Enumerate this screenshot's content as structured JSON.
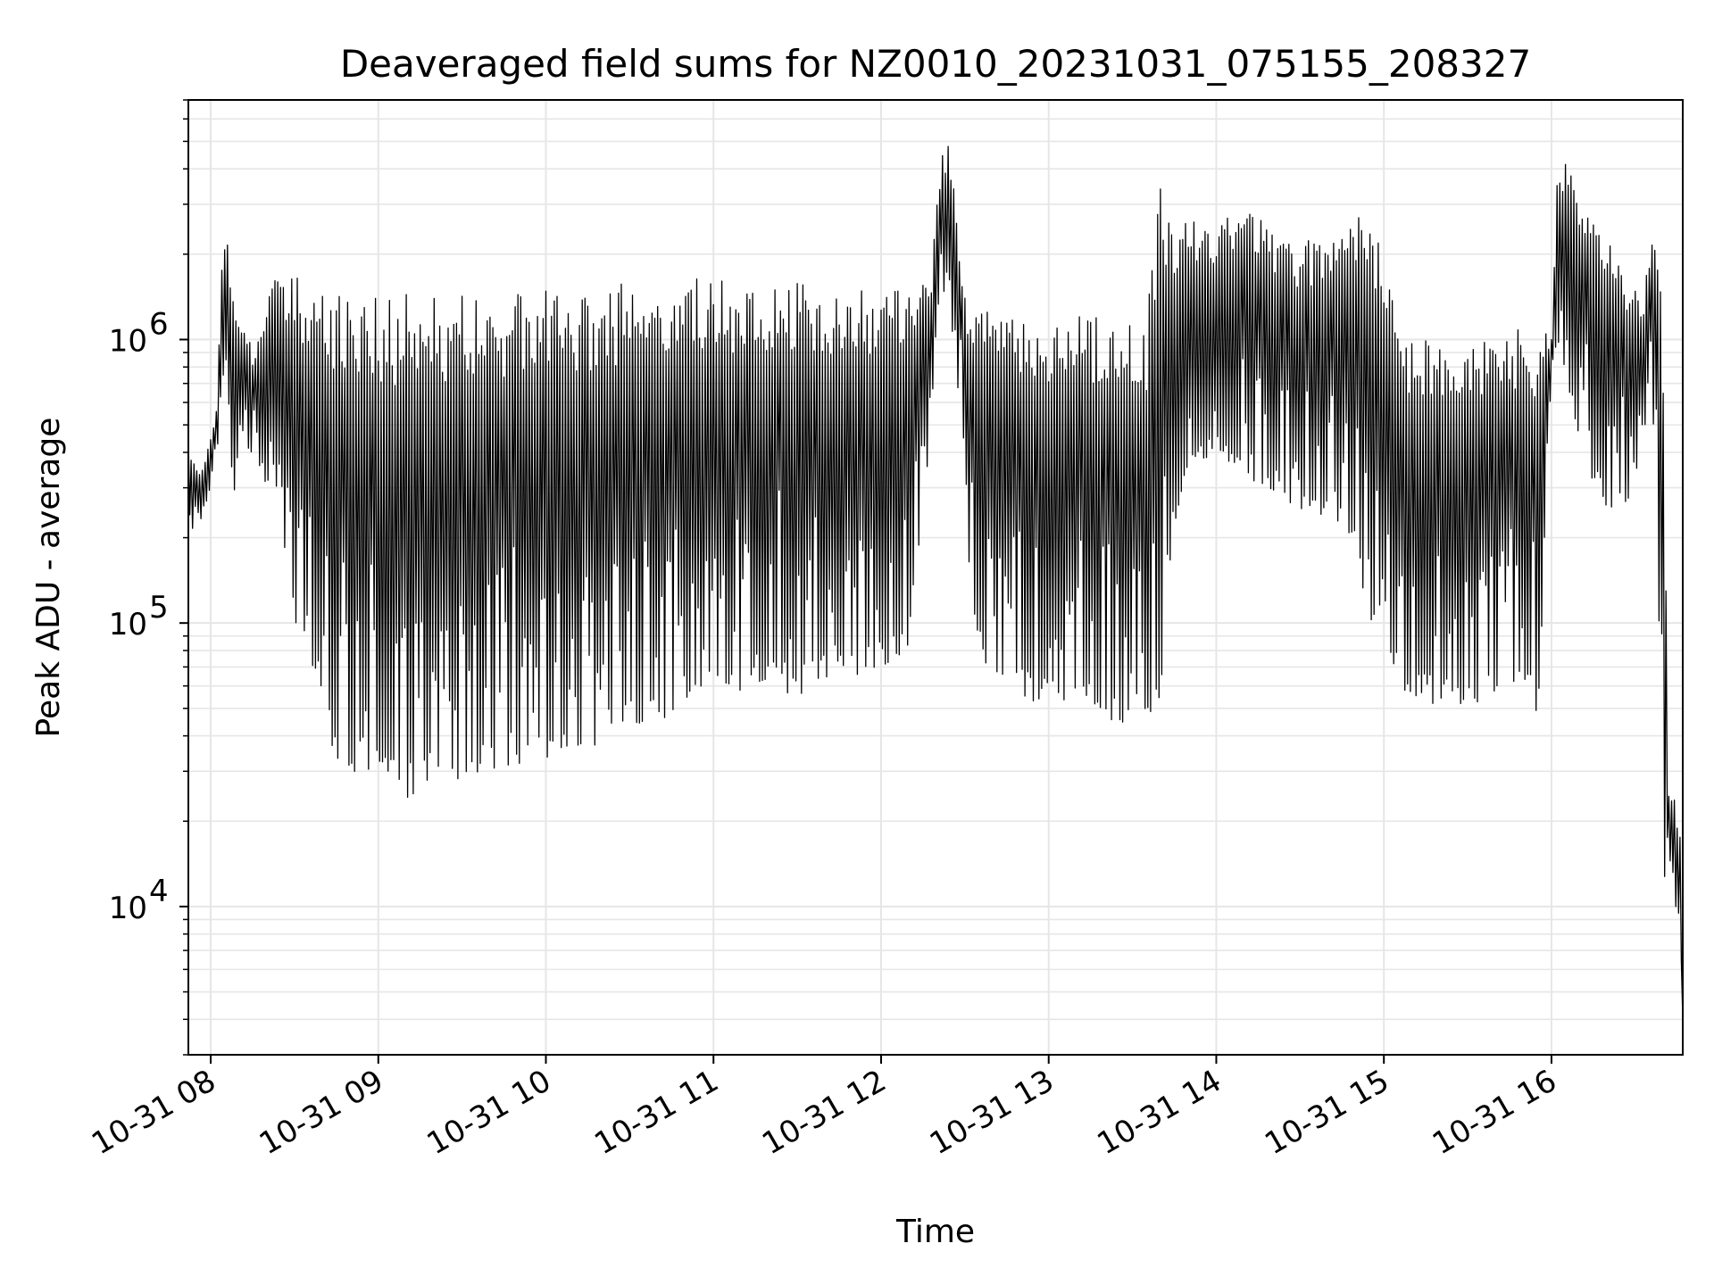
{
  "chart_data": {
    "type": "line",
    "title": "Deaveraged field sums for NZ0010_20231031_075155_208327",
    "xlabel": "Time",
    "ylabel": "Peak ADU - average",
    "xlim": [
      "2023-10-31 07:52",
      "2023-10-31 16:47"
    ],
    "ylim": [
      3000,
      7000000
    ],
    "yscale": "log",
    "grid": true,
    "legend": "none",
    "colors": {
      "line": "#000000",
      "grid": "#e6e6e6",
      "axis": "#000000",
      "background": "#ffffff"
    },
    "x_ticks": [
      {
        "value": "2023-10-31 08:00",
        "label": "10-31 08"
      },
      {
        "value": "2023-10-31 09:00",
        "label": "10-31 09"
      },
      {
        "value": "2023-10-31 10:00",
        "label": "10-31 10"
      },
      {
        "value": "2023-10-31 11:00",
        "label": "10-31 11"
      },
      {
        "value": "2023-10-31 12:00",
        "label": "10-31 12"
      },
      {
        "value": "2023-10-31 13:00",
        "label": "10-31 13"
      },
      {
        "value": "2023-10-31 14:00",
        "label": "10-31 14"
      },
      {
        "value": "2023-10-31 15:00",
        "label": "10-31 15"
      },
      {
        "value": "2023-10-31 16:00",
        "label": "10-31 16"
      }
    ],
    "y_ticks": [
      {
        "value": 10000,
        "base": "10",
        "exp": "4"
      },
      {
        "value": 100000,
        "base": "10",
        "exp": "5"
      },
      {
        "value": 1000000,
        "base": "10",
        "exp": "6"
      }
    ],
    "series": [
      {
        "x": [
          "2023-10-31 07:52",
          "2023-10-31 07:55",
          "2023-10-31 07:58",
          "2023-10-31 08:00",
          "2023-10-31 08:02",
          "2023-10-31 08:04",
          "2023-10-31 08:06",
          "2023-10-31 08:08",
          "2023-10-31 08:10",
          "2023-10-31 08:12",
          "2023-10-31 08:14",
          "2023-10-31 08:16",
          "2023-10-31 08:18",
          "2023-10-31 08:20",
          "2023-10-31 08:22",
          "2023-10-31 08:24",
          "2023-10-31 08:26",
          "2023-10-31 08:28",
          "2023-10-31 08:30",
          "2023-10-31 08:33",
          "2023-10-31 08:36",
          "2023-10-31 08:39",
          "2023-10-31 08:42",
          "2023-10-31 08:45",
          "2023-10-31 08:50",
          "2023-10-31 08:55",
          "2023-10-31 09:00",
          "2023-10-31 09:05",
          "2023-10-31 09:10",
          "2023-10-31 09:15",
          "2023-10-31 09:20",
          "2023-10-31 09:25",
          "2023-10-31 09:30",
          "2023-10-31 09:35",
          "2023-10-31 09:40",
          "2023-10-31 09:45",
          "2023-10-31 09:50",
          "2023-10-31 09:55",
          "2023-10-31 10:00",
          "2023-10-31 10:05",
          "2023-10-31 10:10",
          "2023-10-31 10:15",
          "2023-10-31 10:20",
          "2023-10-31 10:25",
          "2023-10-31 10:30",
          "2023-10-31 10:40",
          "2023-10-31 10:50",
          "2023-10-31 11:00",
          "2023-10-31 11:10",
          "2023-10-31 11:20",
          "2023-10-31 11:30",
          "2023-10-31 11:40",
          "2023-10-31 11:50",
          "2023-10-31 12:00",
          "2023-10-31 12:10",
          "2023-10-31 12:18",
          "2023-10-31 12:20",
          "2023-10-31 12:22",
          "2023-10-31 12:24",
          "2023-10-31 12:26",
          "2023-10-31 12:28",
          "2023-10-31 12:30",
          "2023-10-31 12:32",
          "2023-10-31 12:40",
          "2023-10-31 12:50",
          "2023-10-31 13:00",
          "2023-10-31 13:10",
          "2023-10-31 13:20",
          "2023-10-31 13:30",
          "2023-10-31 13:35",
          "2023-10-31 13:40",
          "2023-10-31 13:45",
          "2023-10-31 13:50",
          "2023-10-31 14:00",
          "2023-10-31 14:10",
          "2023-10-31 14:20",
          "2023-10-31 14:30",
          "2023-10-31 14:40",
          "2023-10-31 14:50",
          "2023-10-31 14:55",
          "2023-10-31 15:00",
          "2023-10-31 15:05",
          "2023-10-31 15:10",
          "2023-10-31 15:20",
          "2023-10-31 15:30",
          "2023-10-31 15:40",
          "2023-10-31 15:50",
          "2023-10-31 15:55",
          "2023-10-31 16:00",
          "2023-10-31 16:02",
          "2023-10-31 16:05",
          "2023-10-31 16:10",
          "2023-10-31 16:15",
          "2023-10-31 16:20",
          "2023-10-31 16:25",
          "2023-10-31 16:30",
          "2023-10-31 16:33",
          "2023-10-31 16:36",
          "2023-10-31 16:38",
          "2023-10-31 16:40",
          "2023-10-31 16:42",
          "2023-10-31 16:44",
          "2023-10-31 16:47"
        ],
        "min": [
          200000,
          210000,
          250000,
          300000,
          350000,
          700000,
          900000,
          130000,
          500000,
          450000,
          400000,
          380000,
          350000,
          300000,
          250000,
          200000,
          180000,
          150000,
          95000,
          80000,
          70000,
          55000,
          45000,
          30000,
          30000,
          29000,
          28000,
          25000,
          24000,
          26000,
          27000,
          28000,
          27000,
          28000,
          29000,
          30000,
          30000,
          31000,
          30000,
          31000,
          32000,
          33000,
          30000,
          35000,
          40000,
          45000,
          50000,
          55000,
          55000,
          60000,
          55000,
          60000,
          65000,
          70000,
          80000,
          500000,
          1200000,
          1500000,
          1400000,
          900000,
          600000,
          400000,
          100000,
          60000,
          55000,
          50000,
          48000,
          45000,
          42000,
          40000,
          50000,
          200000,
          350000,
          400000,
          300000,
          280000,
          250000,
          220000,
          200000,
          80000,
          100000,
          60000,
          55000,
          50000,
          50000,
          55000,
          60000,
          38000,
          800000,
          900000,
          800000,
          400000,
          300000,
          250000,
          250000,
          300000,
          500000,
          500000,
          200000,
          10000,
          15000,
          12000,
          4000
        ],
        "max": [
          450000,
          350000,
          380000,
          450000,
          600000,
          2000000,
          2600000,
          1500000,
          1200000,
          1100000,
          1000000,
          900000,
          1200000,
          1500000,
          1600000,
          1700000,
          1600000,
          1650000,
          1700000,
          1600000,
          1550000,
          1500000,
          1450000,
          1450000,
          1400000,
          1400000,
          1450000,
          1400000,
          1450000,
          1500000,
          1400000,
          1350000,
          1450000,
          1400000,
          1500000,
          1400000,
          1450000,
          1500000,
          1500000,
          1400000,
          1450000,
          1400000,
          1500000,
          1550000,
          1600000,
          1600000,
          1650000,
          1650000,
          1600000,
          1650000,
          1600000,
          1600000,
          1550000,
          1550000,
          1600000,
          1700000,
          3000000,
          4500000,
          5000000,
          3500000,
          2200000,
          1500000,
          1200000,
          1300000,
          1250000,
          1200000,
          1300000,
          1200000,
          1150000,
          1200000,
          3500000,
          2500000,
          2700000,
          2600000,
          3000000,
          2500000,
          2200000,
          2500000,
          2700000,
          3100000,
          2300000,
          1100000,
          1100000,
          1000000,
          1100000,
          1050000,
          1100000,
          1050000,
          1050000,
          3500000,
          4200000,
          3600000,
          3400000,
          2500000,
          1800000,
          1500000,
          1300000,
          2900000,
          2000000,
          1300000,
          25000,
          24000,
          20000,
          5000
        ]
      }
    ]
  }
}
